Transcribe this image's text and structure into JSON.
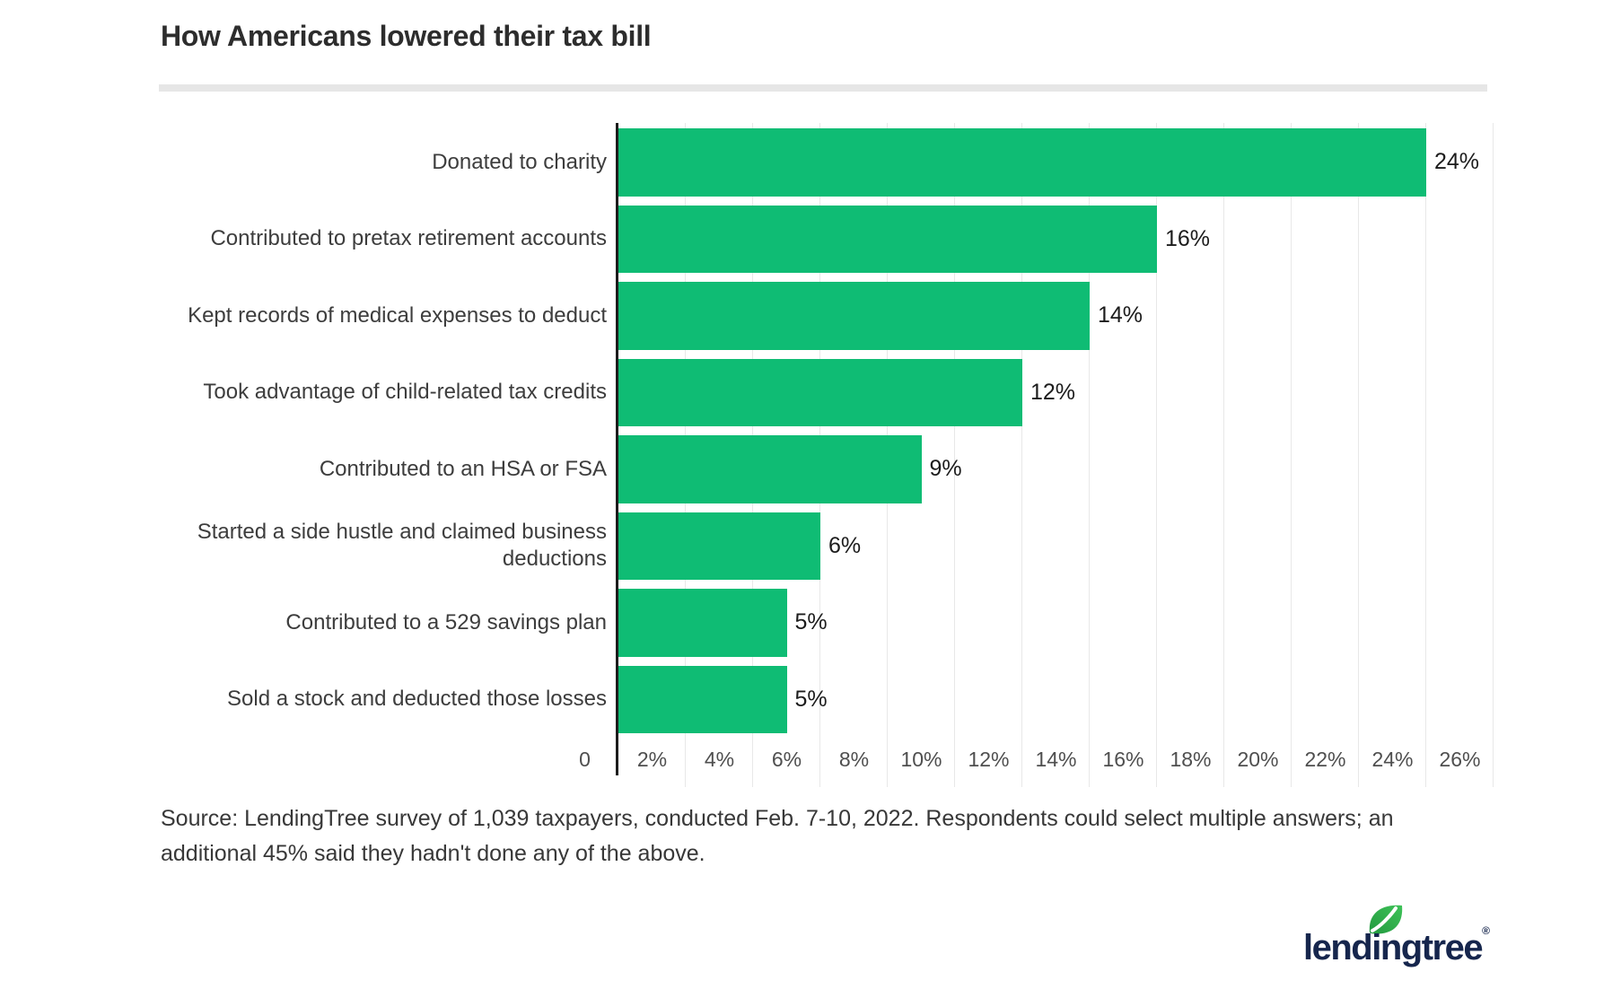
{
  "header": {
    "title": "How Americans lowered their tax bill"
  },
  "chart_data": {
    "type": "bar",
    "orientation": "horizontal",
    "title": "How Americans lowered their tax bill",
    "categories": [
      "Donated to charity",
      "Contributed to pretax retirement accounts",
      "Kept records of medical expenses to deduct",
      "Took advantage of child-related tax credits",
      "Contributed to an HSA or FSA",
      "Started a side hustle and claimed business deductions",
      "Contributed to a 529 savings plan",
      "Sold a stock and deducted those losses"
    ],
    "values": [
      24,
      16,
      14,
      12,
      9,
      6,
      5,
      5
    ],
    "value_labels": [
      "24%",
      "16%",
      "14%",
      "12%",
      "9%",
      "6%",
      "5%",
      "5%"
    ],
    "x_axis": {
      "range": [
        0,
        26
      ],
      "ticks": [
        0,
        2,
        4,
        6,
        8,
        10,
        12,
        14,
        16,
        18,
        20,
        22,
        24,
        26
      ],
      "tick_labels": [
        "0",
        "2%",
        "4%",
        "6%",
        "8%",
        "10%",
        "12%",
        "14%",
        "16%",
        "18%",
        "20%",
        "22%",
        "24%",
        "26%"
      ],
      "grid": true
    },
    "legend": null,
    "colors": {
      "bar": "#0fbc74",
      "axis": "#1c1c1c",
      "gridline": "#e8e8e8"
    }
  },
  "footer": {
    "source": "Source: LendingTree survey of 1,039 taxpayers, conducted Feb. 7-10, 2022. Respondents could select multiple answers; an additional 45% said they hadn't done any of the above.",
    "logo_text": "lendingtree",
    "logo_reg": "®"
  }
}
